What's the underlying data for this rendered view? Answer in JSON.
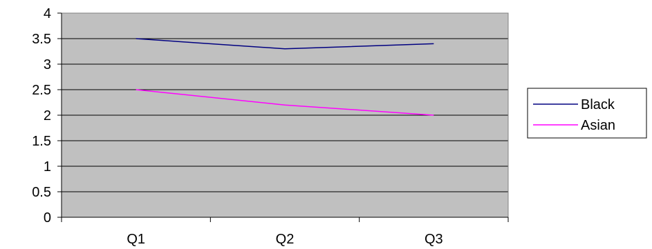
{
  "chart_data": {
    "type": "line",
    "categories": [
      "Q1",
      "Q2",
      "Q3"
    ],
    "series": [
      {
        "name": "Black",
        "values": [
          3.5,
          3.3,
          3.4
        ],
        "color": "#000080"
      },
      {
        "name": "Asian",
        "values": [
          2.5,
          2.2,
          2.0
        ],
        "color": "#FF00FF"
      }
    ],
    "ylim": [
      0,
      4
    ],
    "yticks": [
      "0",
      "0.5",
      "1",
      "1.5",
      "2",
      "2.5",
      "3",
      "3.5",
      "4"
    ],
    "grid": true,
    "legend": "right",
    "plot_background": "#C0C0C0"
  }
}
